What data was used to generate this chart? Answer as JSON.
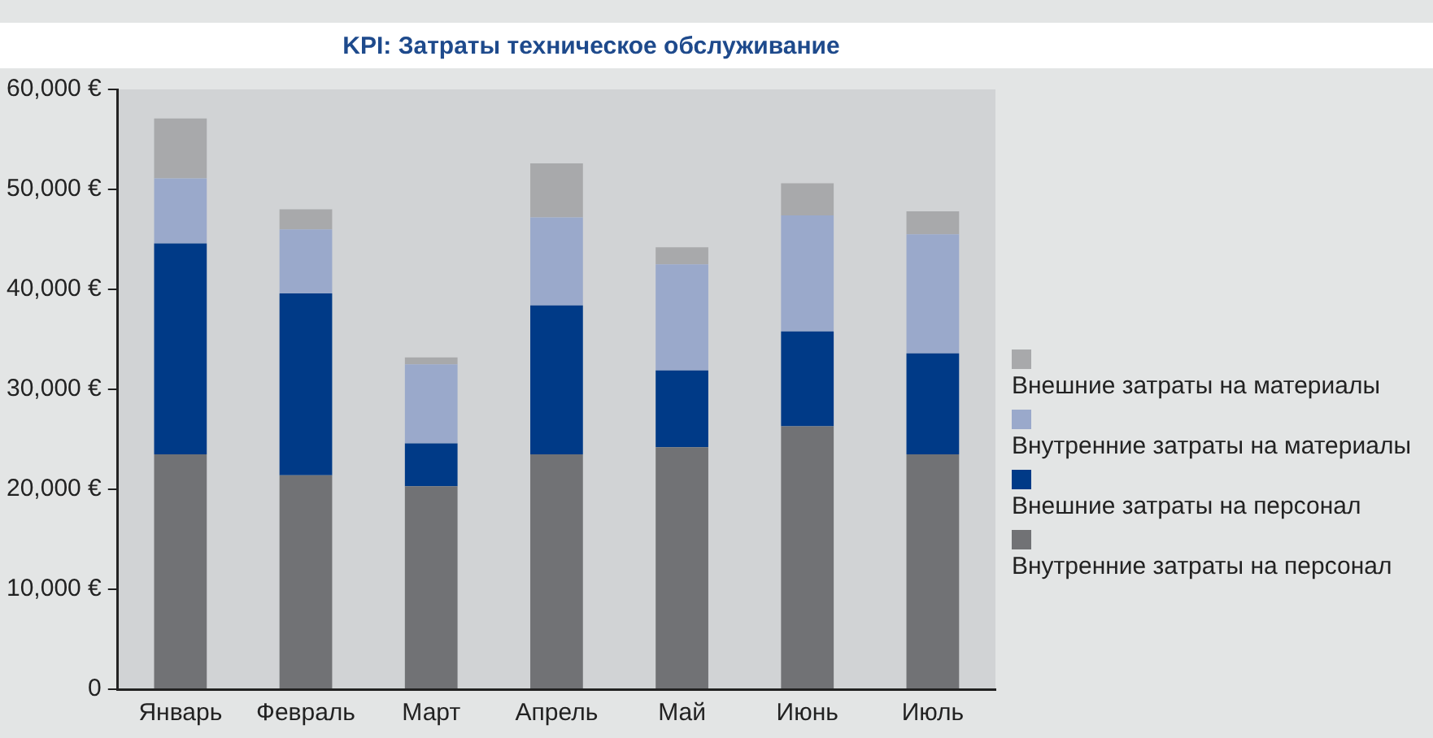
{
  "chart_data": {
    "type": "bar",
    "title": "KPI: Затраты техническое обслуживание",
    "stacked": true,
    "categories": [
      "Январь",
      "Февраль",
      "Март",
      "Апрель",
      "Май",
      "Июнь",
      "Июль"
    ],
    "series": [
      {
        "name": "Внутренние затраты на персонал",
        "color": "#717275",
        "values": [
          23500,
          21400,
          20300,
          23500,
          24200,
          26300,
          23500
        ]
      },
      {
        "name": "Внешние затраты на персонал",
        "color": "#003a87",
        "values": [
          21100,
          18200,
          4300,
          14900,
          7700,
          9500,
          10100
        ]
      },
      {
        "name": "Внутренние затраты на материалы",
        "color": "#9aa9cb",
        "values": [
          6500,
          6400,
          7900,
          8800,
          10600,
          11600,
          11900
        ]
      },
      {
        "name": "Внешние затраты на материалы",
        "color": "#a8a9ab",
        "values": [
          6000,
          2000,
          700,
          5400,
          1700,
          3200,
          2300
        ]
      }
    ],
    "ylim": [
      0,
      60000
    ],
    "yticks": [
      0,
      {
        "value": 10000,
        "label": "10,000 €"
      },
      {
        "value": 20000,
        "label": "20,000 €"
      },
      {
        "value": 30000,
        "label": "30,000 €"
      },
      {
        "value": 40000,
        "label": "40,000 €"
      },
      {
        "value": 50000,
        "label": "50,000 €"
      },
      {
        "value": 60000,
        "label": "60,000 €"
      }
    ],
    "grid": false,
    "legend": "right"
  }
}
